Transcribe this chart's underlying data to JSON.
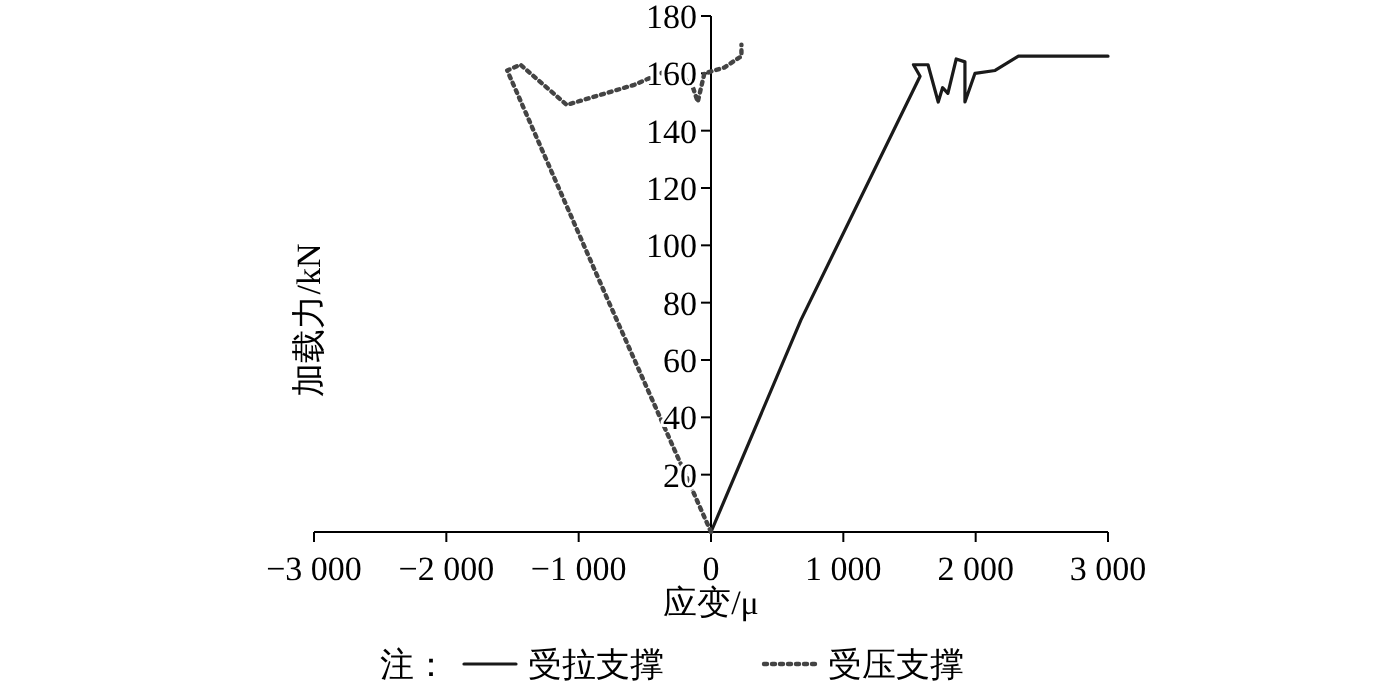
{
  "chart_data": {
    "type": "line",
    "xlabel": "应变/μ",
    "ylabel": "加载力/kN",
    "legend_title": "注：",
    "legend": "bottom",
    "grid": false,
    "marker": "none",
    "xlim": [
      -3000,
      3000
    ],
    "xticks": [
      {
        "value": -3000,
        "label": "−3 000"
      },
      {
        "value": -2000,
        "label": "−2 000"
      },
      {
        "value": -1000,
        "label": "−1 000"
      },
      0,
      {
        "value": 1000,
        "label": "1 000"
      },
      {
        "value": 2000,
        "label": "2 000"
      },
      {
        "value": 3000,
        "label": "3 000"
      }
    ],
    "ylim": [
      0,
      180
    ],
    "yticks": [
      20,
      40,
      60,
      80,
      100,
      120,
      140,
      160,
      180
    ],
    "series": [
      {
        "name": "受拉支撑",
        "color": "#1a1a1a",
        "line_style": "solid",
        "x": [
          0,
          680,
          1580,
          1530,
          1640,
          1717,
          1750,
          1790,
          1853,
          1919,
          1919,
          1995,
          2147,
          2323,
          3000
        ],
        "values": [
          0,
          74,
          159,
          163,
          163,
          150,
          155,
          153,
          165,
          164,
          150,
          160,
          161,
          166,
          166
        ]
      },
      {
        "name": "受压支撑",
        "color": "#444444",
        "line_style": "dotted",
        "x": [
          0,
          -780,
          -1540,
          -1440,
          -1090,
          -580,
          -330,
          -150,
          -100,
          -50,
          100,
          230,
          230
        ],
        "values": [
          0,
          81,
          161,
          163,
          149,
          156,
          161,
          157,
          150,
          160,
          162,
          166,
          170
        ]
      }
    ]
  }
}
